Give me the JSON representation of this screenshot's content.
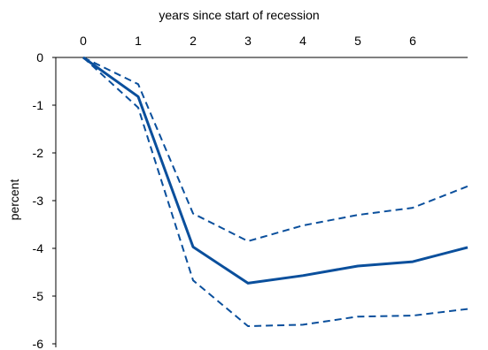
{
  "chart_data": {
    "type": "line",
    "title": "",
    "xlabel": "years since start of recession",
    "ylabel": "percent",
    "x_ticks": [
      0,
      1,
      2,
      3,
      4,
      5,
      6
    ],
    "y_ticks": [
      0,
      -1,
      -2,
      -3,
      -4,
      -5,
      -6
    ],
    "xlim": [
      -0.5,
      7
    ],
    "ylim": [
      -6,
      0
    ],
    "x_axis_position": "top",
    "grid": false,
    "legend": "none",
    "colors": {
      "line": "#0a4f9c"
    },
    "series": [
      {
        "style": "solid",
        "x": [
          0,
          1,
          2,
          3,
          4,
          5,
          6,
          7
        ],
        "values": [
          0,
          -0.82,
          -3.97,
          -4.73,
          -4.57,
          -4.37,
          -4.28,
          -3.98
        ]
      },
      {
        "style": "dashed",
        "x": [
          0,
          1,
          2,
          3,
          4,
          5,
          6,
          7
        ],
        "values": [
          0,
          -0.56,
          -3.27,
          -3.85,
          -3.52,
          -3.3,
          -3.15,
          -2.7
        ]
      },
      {
        "style": "dashed",
        "x": [
          0,
          1,
          2,
          3,
          4,
          5,
          6,
          7
        ],
        "values": [
          0,
          -1.05,
          -4.67,
          -5.63,
          -5.6,
          -5.43,
          -5.41,
          -5.27
        ]
      }
    ]
  }
}
